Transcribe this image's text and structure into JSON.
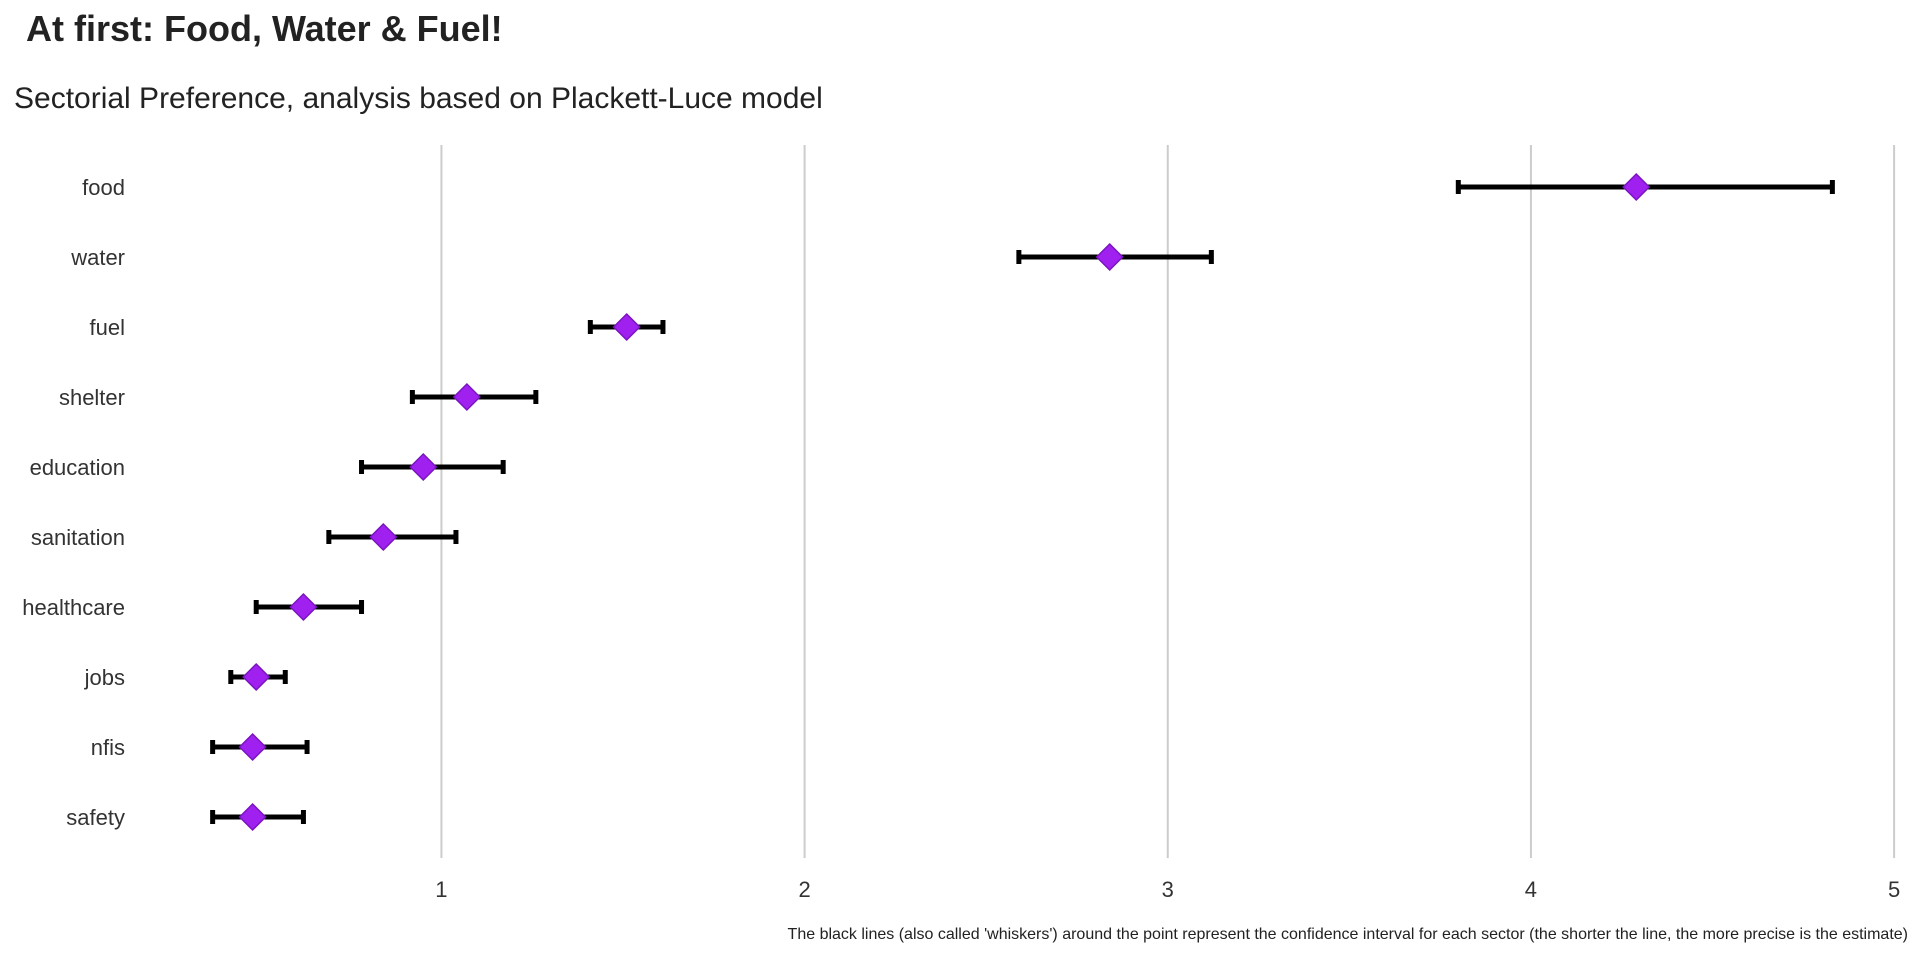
{
  "title": "At first: Food, Water & Fuel!",
  "subtitle": "Sectorial Preference, analysis based on Plackett-Luce model",
  "caption": "The black lines (also called 'whiskers') around the point represent the confidence interval for each sector (the shorter the line, the more precise is the estimate)",
  "chart_data": {
    "type": "scatter",
    "categories": [
      "food",
      "water",
      "fuel",
      "shelter",
      "education",
      "sanitation",
      "healthcare",
      "jobs",
      "nfis",
      "safety"
    ],
    "estimate": [
      4.29,
      2.84,
      1.51,
      1.07,
      0.95,
      0.84,
      0.62,
      0.49,
      0.48,
      0.48
    ],
    "lower": [
      3.8,
      2.59,
      1.41,
      0.92,
      0.78,
      0.69,
      0.49,
      0.42,
      0.37,
      0.37
    ],
    "upper": [
      4.83,
      3.12,
      1.61,
      1.26,
      1.17,
      1.04,
      0.78,
      0.57,
      0.63,
      0.62
    ],
    "x_ticks": [
      "1",
      "2",
      "3",
      "4",
      "5"
    ],
    "xlim": [
      0.17,
      5.03
    ],
    "xlabel": "",
    "ylabel": "",
    "grid": "vertical major",
    "legend": "none",
    "colors": {
      "point": "#a020f0",
      "point_stroke": "#7a14c0",
      "whisker": "#000000",
      "grid": "#cccccc"
    }
  }
}
